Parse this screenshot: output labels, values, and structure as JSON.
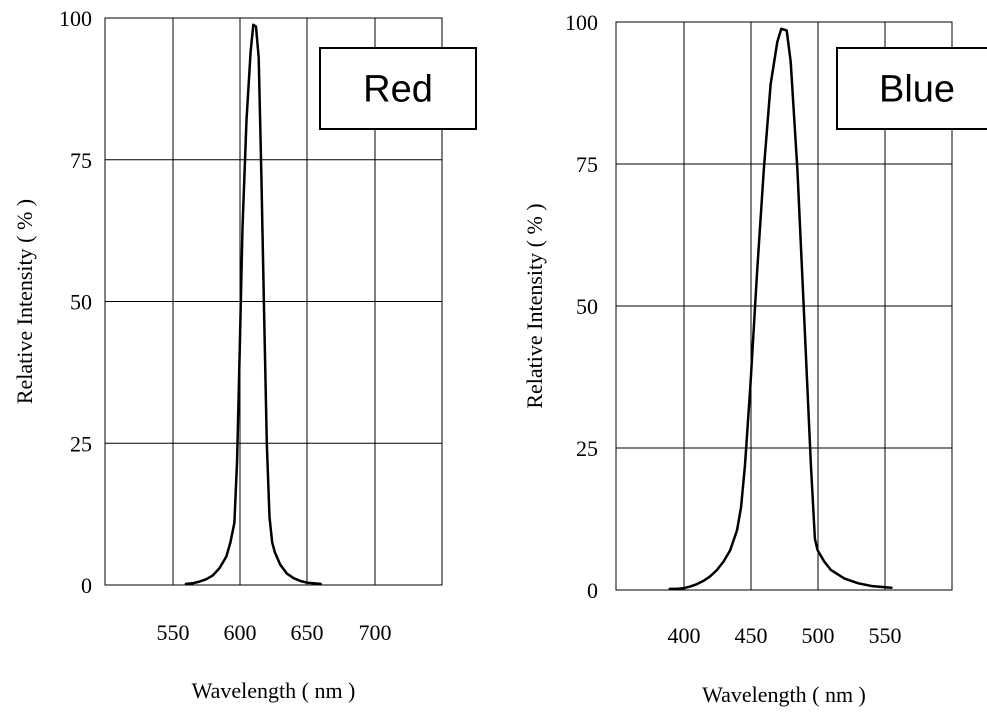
{
  "chart_data": [
    {
      "type": "line",
      "legend": "Red",
      "xlabel": "Wavelength ( nm )",
      "ylabel": "Relative Intensity ( % )",
      "xlim": [
        500,
        750
      ],
      "ylim": [
        0,
        100
      ],
      "x_ticks": [
        "550",
        "600",
        "650",
        "700"
      ],
      "y_ticks": [
        "0",
        "25",
        "50",
        "75",
        "100"
      ],
      "grid": true,
      "legend_position": "top-right",
      "series": [
        {
          "x": [
            560,
            565,
            570,
            575,
            580,
            585,
            590,
            593,
            596,
            598,
            600,
            602,
            605,
            608,
            610,
            612,
            614,
            616,
            618,
            620,
            622,
            624,
            626,
            630,
            635,
            640,
            645,
            650,
            655,
            660
          ],
          "y": [
            0.2,
            0.3,
            0.6,
            1.0,
            1.7,
            3.0,
            5.0,
            7.5,
            11,
            22,
            42,
            63,
            82,
            94,
            98.8,
            98.5,
            93,
            72,
            48,
            25,
            12,
            7.5,
            5.8,
            3.6,
            2.0,
            1.2,
            0.7,
            0.4,
            0.3,
            0.2
          ]
        }
      ]
    },
    {
      "type": "line",
      "legend": "Blue",
      "xlabel": "Wavelength ( nm )",
      "ylabel": "Relative Intensity ( % )",
      "xlim": [
        350,
        600
      ],
      "ylim": [
        0,
        100
      ],
      "x_ticks": [
        "400",
        "450",
        "500",
        "550"
      ],
      "y_ticks": [
        "0",
        "25",
        "50",
        "75",
        "100"
      ],
      "grid": true,
      "legend_position": "top-right",
      "series": [
        {
          "x": [
            390,
            395,
            400,
            405,
            410,
            415,
            420,
            425,
            430,
            435,
            440,
            443,
            446,
            450,
            455,
            460,
            465,
            470,
            473,
            477,
            480,
            485,
            490,
            495,
            498,
            500,
            505,
            510,
            520,
            530,
            540,
            550,
            555
          ],
          "y": [
            0.2,
            0.2,
            0.3,
            0.6,
            1.0,
            1.6,
            2.4,
            3.5,
            5.0,
            7.0,
            10.5,
            14.5,
            22,
            36,
            56,
            74,
            89,
            96.5,
            98.8,
            98.5,
            93,
            74,
            48,
            22,
            9,
            7,
            5.0,
            3.5,
            2.0,
            1.2,
            0.7,
            0.5,
            0.4
          ]
        }
      ]
    }
  ]
}
